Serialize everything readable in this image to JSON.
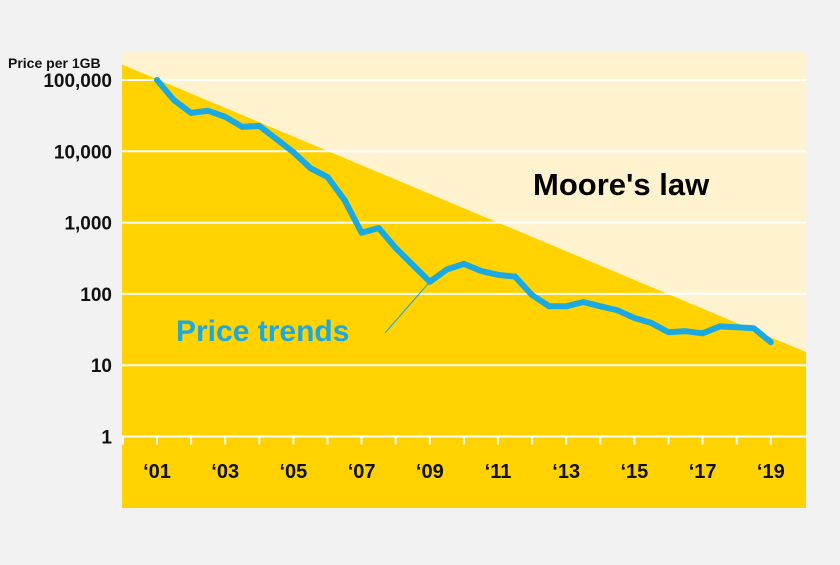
{
  "chart_data": {
    "type": "line",
    "title": "",
    "ylabel": "Price per 1GB",
    "xlabel": "",
    "yscale": "log",
    "ylim": [
      1,
      200000
    ],
    "xlim": [
      2000,
      2020
    ],
    "y_ticks": [
      {
        "value": 100000,
        "label": "100,000"
      },
      {
        "value": 10000,
        "label": "10,000"
      },
      {
        "value": 1000,
        "label": "1,000"
      },
      {
        "value": 100,
        "label": "100"
      },
      {
        "value": 10,
        "label": "10"
      },
      {
        "value": 1,
        "label": "1"
      }
    ],
    "x_ticks": [
      {
        "value": 2001,
        "label": "‘01"
      },
      {
        "value": 2003,
        "label": "‘03"
      },
      {
        "value": 2005,
        "label": "‘05"
      },
      {
        "value": 2007,
        "label": "‘07"
      },
      {
        "value": 2009,
        "label": "‘09"
      },
      {
        "value": 2011,
        "label": "‘11"
      },
      {
        "value": 2013,
        "label": "‘13"
      },
      {
        "value": 2015,
        "label": "‘15"
      },
      {
        "value": 2017,
        "label": "‘17"
      },
      {
        "value": 2019,
        "label": "‘19"
      }
    ],
    "grid": true,
    "series": [
      {
        "name": "Price trends",
        "color": "#1aa9e0",
        "x": [
          2001,
          2001.5,
          2002,
          2002.5,
          2003,
          2003.5,
          2004,
          2004.5,
          2005,
          2005.5,
          2006,
          2006.5,
          2007,
          2007.5,
          2008,
          2008.5,
          2009,
          2009.5,
          2010,
          2010.5,
          2011,
          2011.5,
          2012,
          2012.5,
          2013,
          2013.5,
          2014,
          2014.5,
          2015,
          2015.5,
          2016,
          2016.5,
          2017,
          2017.5,
          2018,
          2018.5,
          2019
        ],
        "values": [
          100000,
          52000,
          34500,
          37000,
          30500,
          22000,
          22700,
          14900,
          9700,
          5800,
          4360,
          2070,
          720,
          840,
          440,
          255,
          148,
          220,
          264,
          210,
          185,
          175,
          96,
          67,
          67,
          77,
          67,
          59,
          46,
          39,
          29,
          30,
          28,
          35,
          34,
          33,
          21
        ]
      },
      {
        "name": "Moore's law",
        "x": [
          2000,
          2020
        ],
        "values": [
          163000,
          15.5
        ]
      }
    ],
    "annotations": [
      {
        "text": "Moore's law",
        "color": "#000000"
      },
      {
        "text": "Price trends",
        "color": "#1aa9e0",
        "points_to_year": 2009
      }
    ],
    "colors": {
      "below": "#ffd200",
      "above": "#fff3cf",
      "background": "#f2f2f2",
      "grid": "#ffffff"
    }
  }
}
